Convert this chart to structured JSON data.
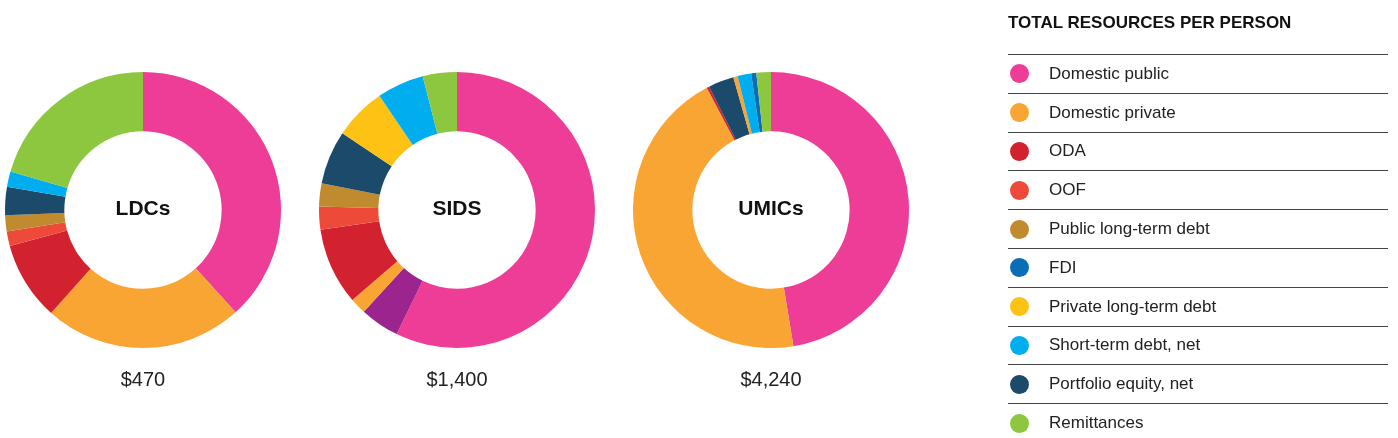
{
  "chart_data": [
    {
      "type": "donut",
      "title": "LDCs",
      "annotations": [
        "$470"
      ],
      "legend": false,
      "categories": [
        null,
        null,
        null,
        null,
        null,
        null,
        null,
        null
      ],
      "values": [
        38.3,
        23.3,
        9.2,
        1.7,
        1.9,
        3.3,
        1.8,
        20.5
      ],
      "colors": [
        "#ed3d96",
        "#f9a533",
        "#d3222f",
        "#ee4a3a",
        "#bf8b2e",
        "#1b4a6b",
        "#00aeef",
        "#8dc63f"
      ]
    },
    {
      "type": "donut",
      "title": "SIDS",
      "annotations": [
        "$1,400"
      ],
      "legend": false,
      "categories": [
        null,
        null,
        null,
        null,
        null,
        null,
        null,
        null,
        null,
        null,
        null
      ],
      "values": [
        50,
        7.2,
        4.6,
        1.9,
        9,
        2.7,
        2.7,
        6.3,
        6.1,
        5.5,
        4
      ],
      "colors": [
        "#ed3d96",
        "#ed3d96",
        "#9b248f",
        "#f9a533",
        "#d3222f",
        "#ee4a3a",
        "#bf8b2e",
        "#1b4a6b",
        "#fdc213",
        "#00aeef",
        "#8dc63f"
      ]
    },
    {
      "type": "donut",
      "title": "UMICs",
      "annotations": [
        "$4,240"
      ],
      "legend": false,
      "categories": [
        null,
        null,
        null,
        null,
        null,
        null,
        null,
        null
      ],
      "values": [
        47.4,
        44.9,
        0.3,
        3,
        0.5,
        1.6,
        0.6,
        1.7
      ],
      "colors": [
        "#ed3d96",
        "#f9a533",
        "#d3222f",
        "#1b4a6b",
        "#f9a533",
        "#00aeef",
        "#0a6eb6",
        "#8dc63f"
      ]
    },
    {
      "type": "other",
      "title": "TOTAL RESOURCES PER PERSON",
      "categories": [
        "Domestic public",
        "Domestic private",
        "ODA",
        "OOF",
        "Public long-term debt",
        "FDI",
        "Private long-term debt",
        "Short-term debt, net",
        "Portfolio equity, net",
        "Remittances"
      ],
      "colors": [
        "#ed3d96",
        "#f9a533",
        "#d3222f",
        "#ee4a3a",
        "#bf8b2e",
        "#0a6eb6",
        "#fdc213",
        "#00aeef",
        "#1b4a6b",
        "#8dc63f"
      ]
    }
  ]
}
